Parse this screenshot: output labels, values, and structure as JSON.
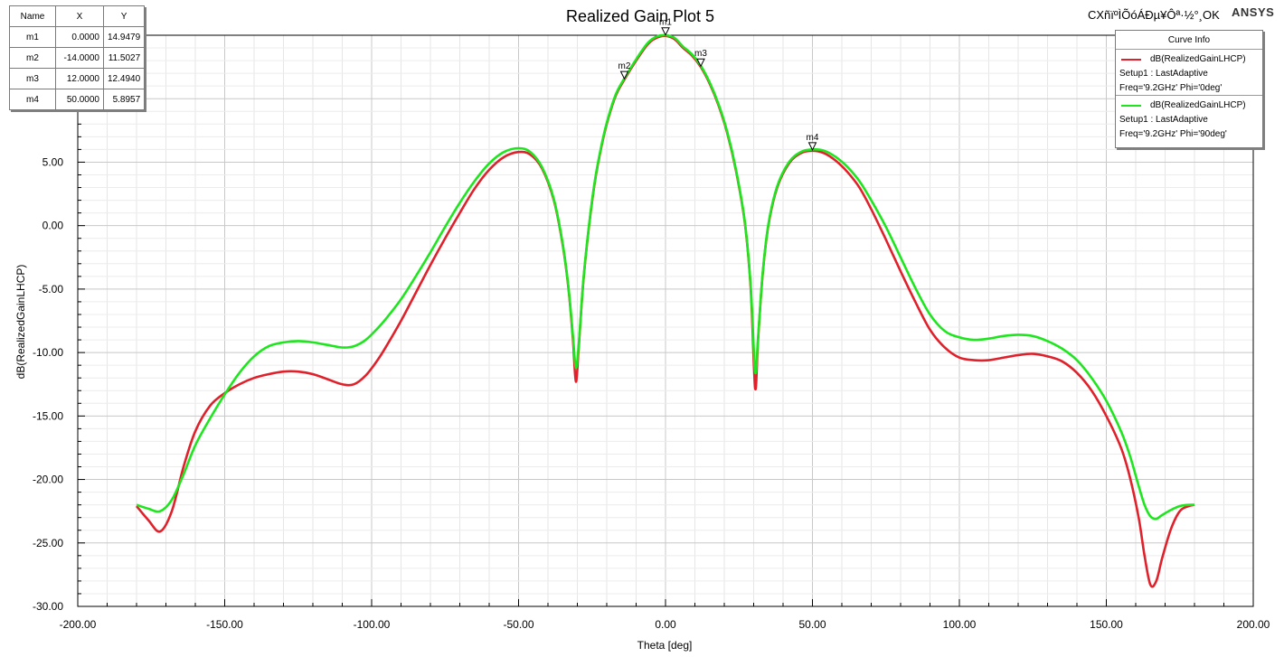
{
  "chart_data": {
    "type": "line",
    "title": "Realized Gain Plot 5",
    "xlabel": "Theta [deg]",
    "ylabel": "dB(RealizedGainLHCP)",
    "xlim": [
      -200,
      200
    ],
    "ylim": [
      -30,
      15
    ],
    "x_ticks": [
      -200,
      -150,
      -100,
      -50,
      0,
      50,
      100,
      150,
      200
    ],
    "x_tick_labels": [
      "-200.00",
      "-150.00",
      "-100.00",
      "-50.00",
      "0.00",
      "50.00",
      "100.00",
      "150.00",
      "200.00"
    ],
    "y_ticks": [
      -30,
      -25,
      -20,
      -15,
      -10,
      -5,
      0,
      5
    ],
    "y_tick_labels": [
      "-30.00",
      "-25.00",
      "-20.00",
      "-15.00",
      "-10.00",
      "-5.00",
      "0.00",
      "5.00"
    ],
    "grid": true,
    "legend_position": "top-right",
    "series": [
      {
        "name": "dB(RealizedGainLHCP)",
        "setup": "Setup1 : LastAdaptive",
        "params": "Freq='9.2GHz' Phi='0deg'",
        "color": "#e0202a",
        "points": [
          [
            -180,
            -22.1
          ],
          [
            -176,
            -23.2
          ],
          [
            -172,
            -24.1
          ],
          [
            -168,
            -22.5
          ],
          [
            -164,
            -19.0
          ],
          [
            -160,
            -16.2
          ],
          [
            -155,
            -14.2
          ],
          [
            -150,
            -13.2
          ],
          [
            -145,
            -12.5
          ],
          [
            -140,
            -12.0
          ],
          [
            -135,
            -11.7
          ],
          [
            -130,
            -11.5
          ],
          [
            -125,
            -11.5
          ],
          [
            -120,
            -11.7
          ],
          [
            -115,
            -12.1
          ],
          [
            -110,
            -12.5
          ],
          [
            -106,
            -12.5
          ],
          [
            -102,
            -11.8
          ],
          [
            -98,
            -10.6
          ],
          [
            -95,
            -9.5
          ],
          [
            -90,
            -7.5
          ],
          [
            -85,
            -5.3
          ],
          [
            -80,
            -3.1
          ],
          [
            -75,
            -1.0
          ],
          [
            -70,
            1.0
          ],
          [
            -65,
            2.9
          ],
          [
            -60,
            4.4
          ],
          [
            -55,
            5.4
          ],
          [
            -50,
            5.8
          ],
          [
            -46,
            5.6
          ],
          [
            -42,
            4.5
          ],
          [
            -38,
            2.0
          ],
          [
            -35,
            -1.5
          ],
          [
            -33,
            -5.0
          ],
          [
            -31.5,
            -9.0
          ],
          [
            -30.5,
            -12.3
          ],
          [
            -29.5,
            -9.5
          ],
          [
            -28,
            -4.5
          ],
          [
            -26,
            0.0
          ],
          [
            -24,
            3.5
          ],
          [
            -22,
            6.0
          ],
          [
            -20,
            8.0
          ],
          [
            -17,
            10.2
          ],
          [
            -14,
            11.5
          ],
          [
            -10,
            13.0
          ],
          [
            -6,
            14.3
          ],
          [
            -3,
            14.8
          ],
          [
            0,
            14.95
          ],
          [
            3,
            14.7
          ],
          [
            6,
            14.0
          ],
          [
            9,
            13.4
          ],
          [
            12,
            12.5
          ],
          [
            15,
            11.2
          ],
          [
            18,
            9.5
          ],
          [
            21,
            7.3
          ],
          [
            24,
            4.3
          ],
          [
            27,
            0.2
          ],
          [
            29,
            -5.0
          ],
          [
            30.5,
            -12.8
          ],
          [
            31.5,
            -9.0
          ],
          [
            33,
            -4.0
          ],
          [
            35,
            0.0
          ],
          [
            38,
            3.0
          ],
          [
            42,
            4.9
          ],
          [
            46,
            5.7
          ],
          [
            50,
            5.9
          ],
          [
            54,
            5.7
          ],
          [
            58,
            5.1
          ],
          [
            62,
            4.2
          ],
          [
            66,
            3.0
          ],
          [
            70,
            1.3
          ],
          [
            75,
            -1.1
          ],
          [
            80,
            -3.6
          ],
          [
            85,
            -6.0
          ],
          [
            90,
            -8.2
          ],
          [
            95,
            -9.6
          ],
          [
            100,
            -10.4
          ],
          [
            105,
            -10.6
          ],
          [
            110,
            -10.6
          ],
          [
            115,
            -10.4
          ],
          [
            120,
            -10.2
          ],
          [
            125,
            -10.1
          ],
          [
            130,
            -10.3
          ],
          [
            135,
            -10.7
          ],
          [
            140,
            -11.6
          ],
          [
            145,
            -13.0
          ],
          [
            150,
            -15.0
          ],
          [
            155,
            -17.5
          ],
          [
            158,
            -19.8
          ],
          [
            161,
            -23.0
          ],
          [
            163,
            -26.0
          ],
          [
            165,
            -28.3
          ],
          [
            167,
            -28.0
          ],
          [
            169,
            -26.2
          ],
          [
            172,
            -23.9
          ],
          [
            175,
            -22.5
          ],
          [
            178,
            -22.1
          ],
          [
            180,
            -22.0
          ]
        ]
      },
      {
        "name": "dB(RealizedGainLHCP)",
        "setup": "Setup1 : LastAdaptive",
        "params": "Freq='9.2GHz' Phi='90deg'",
        "color": "#1ee61e",
        "points": [
          [
            -180,
            -22.0
          ],
          [
            -176,
            -22.3
          ],
          [
            -172,
            -22.5
          ],
          [
            -168,
            -21.6
          ],
          [
            -164,
            -19.6
          ],
          [
            -160,
            -17.3
          ],
          [
            -155,
            -15.2
          ],
          [
            -150,
            -13.3
          ],
          [
            -145,
            -11.6
          ],
          [
            -140,
            -10.3
          ],
          [
            -135,
            -9.5
          ],
          [
            -130,
            -9.2
          ],
          [
            -125,
            -9.1
          ],
          [
            -120,
            -9.2
          ],
          [
            -115,
            -9.4
          ],
          [
            -110,
            -9.6
          ],
          [
            -106,
            -9.5
          ],
          [
            -102,
            -9.0
          ],
          [
            -98,
            -8.1
          ],
          [
            -95,
            -7.3
          ],
          [
            -90,
            -5.8
          ],
          [
            -85,
            -4.0
          ],
          [
            -80,
            -2.1
          ],
          [
            -75,
            -0.1
          ],
          [
            -70,
            1.8
          ],
          [
            -65,
            3.5
          ],
          [
            -60,
            4.9
          ],
          [
            -55,
            5.8
          ],
          [
            -50,
            6.1
          ],
          [
            -46,
            5.8
          ],
          [
            -42,
            4.6
          ],
          [
            -38,
            2.1
          ],
          [
            -35,
            -1.4
          ],
          [
            -33,
            -4.9
          ],
          [
            -31.5,
            -8.7
          ],
          [
            -30.5,
            -11.2
          ],
          [
            -29.5,
            -9.3
          ],
          [
            -28,
            -4.4
          ],
          [
            -26,
            0.1
          ],
          [
            -24,
            3.6
          ],
          [
            -22,
            6.1
          ],
          [
            -20,
            8.1
          ],
          [
            -17,
            10.3
          ],
          [
            -14,
            11.6
          ],
          [
            -10,
            13.1
          ],
          [
            -6,
            14.4
          ],
          [
            -3,
            14.9
          ],
          [
            0,
            15.0
          ],
          [
            3,
            14.8
          ],
          [
            6,
            14.1
          ],
          [
            9,
            13.5
          ],
          [
            12,
            12.6
          ],
          [
            15,
            11.3
          ],
          [
            18,
            9.6
          ],
          [
            21,
            7.4
          ],
          [
            24,
            4.4
          ],
          [
            27,
            0.3
          ],
          [
            29,
            -4.8
          ],
          [
            30.5,
            -11.5
          ],
          [
            31.5,
            -8.8
          ],
          [
            33,
            -3.9
          ],
          [
            35,
            0.1
          ],
          [
            38,
            3.1
          ],
          [
            42,
            5.0
          ],
          [
            46,
            5.8
          ],
          [
            50,
            6.0
          ],
          [
            54,
            5.9
          ],
          [
            58,
            5.4
          ],
          [
            62,
            4.6
          ],
          [
            66,
            3.5
          ],
          [
            70,
            2.0
          ],
          [
            75,
            -0.1
          ],
          [
            80,
            -2.5
          ],
          [
            85,
            -4.9
          ],
          [
            90,
            -7.0
          ],
          [
            95,
            -8.3
          ],
          [
            100,
            -8.8
          ],
          [
            105,
            -9.0
          ],
          [
            110,
            -8.9
          ],
          [
            115,
            -8.7
          ],
          [
            120,
            -8.6
          ],
          [
            125,
            -8.7
          ],
          [
            130,
            -9.1
          ],
          [
            135,
            -9.7
          ],
          [
            140,
            -10.6
          ],
          [
            145,
            -12.0
          ],
          [
            150,
            -13.8
          ],
          [
            155,
            -16.2
          ],
          [
            158,
            -18.1
          ],
          [
            161,
            -20.5
          ],
          [
            163,
            -22.0
          ],
          [
            165,
            -22.9
          ],
          [
            167,
            -23.1
          ],
          [
            169,
            -22.8
          ],
          [
            172,
            -22.4
          ],
          [
            175,
            -22.1
          ],
          [
            178,
            -22.0
          ],
          [
            180,
            -22.0
          ]
        ]
      }
    ],
    "markers": [
      {
        "name": "m1",
        "x": 0.0,
        "y": 14.9479
      },
      {
        "name": "m2",
        "x": -14.0,
        "y": 11.5027
      },
      {
        "name": "m3",
        "x": 12.0,
        "y": 12.494
      },
      {
        "name": "m4",
        "x": 50.0,
        "y": 5.8957
      }
    ]
  },
  "marker_table": {
    "headers": [
      "Name",
      "X",
      "Y"
    ],
    "rows": [
      {
        "name": "m1",
        "x": "0.0000",
        "y": "14.9479"
      },
      {
        "name": "m2",
        "x": "-14.0000",
        "y": "11.5027"
      },
      {
        "name": "m3",
        "x": "12.0000",
        "y": "12.4940"
      },
      {
        "name": "m4",
        "x": "50.0000",
        "y": "5.8957"
      }
    ]
  },
  "curve_info": {
    "title": "Curve Info",
    "entries": [
      {
        "label": "dB(RealizedGainLHCP)",
        "setup": "Setup1 : LastAdaptive",
        "params": "Freq='9.2GHz' Phi='0deg'",
        "color": "#e0202a"
      },
      {
        "label": "dB(RealizedGainLHCP)",
        "setup": "Setup1 : LastAdaptive",
        "params": "Freq='9.2GHz' Phi='90deg'",
        "color": "#1ee61e"
      }
    ]
  },
  "watermark_text": "CXñïºÌÕóÁÐµ¥Ôª·½°¸OK",
  "brand": "ANSYS"
}
